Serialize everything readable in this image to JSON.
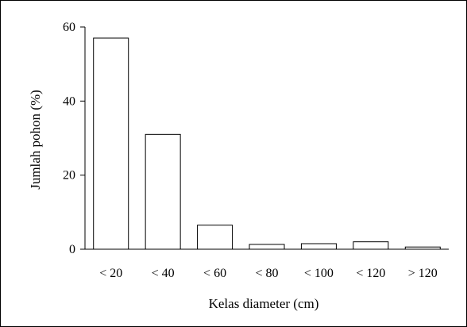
{
  "chart_data": {
    "type": "bar",
    "title": "",
    "xlabel": "Kelas diameter (cm)",
    "ylabel": "Jumlah pohon (%)",
    "categories": [
      "< 20",
      "< 40",
      "< 60",
      "< 80",
      "< 100",
      "< 120",
      "> 120"
    ],
    "values": [
      57,
      31,
      6.5,
      1.3,
      1.5,
      2.0,
      0.6
    ],
    "ylim": [
      0,
      60
    ],
    "yticks": [
      "0",
      "20",
      "40",
      "60"
    ],
    "grid": false,
    "legend": "none",
    "colors": {
      "bar_fill": "#ffffff",
      "bar_stroke": "#000000",
      "axis": "#000000",
      "frame": "#000000"
    }
  }
}
